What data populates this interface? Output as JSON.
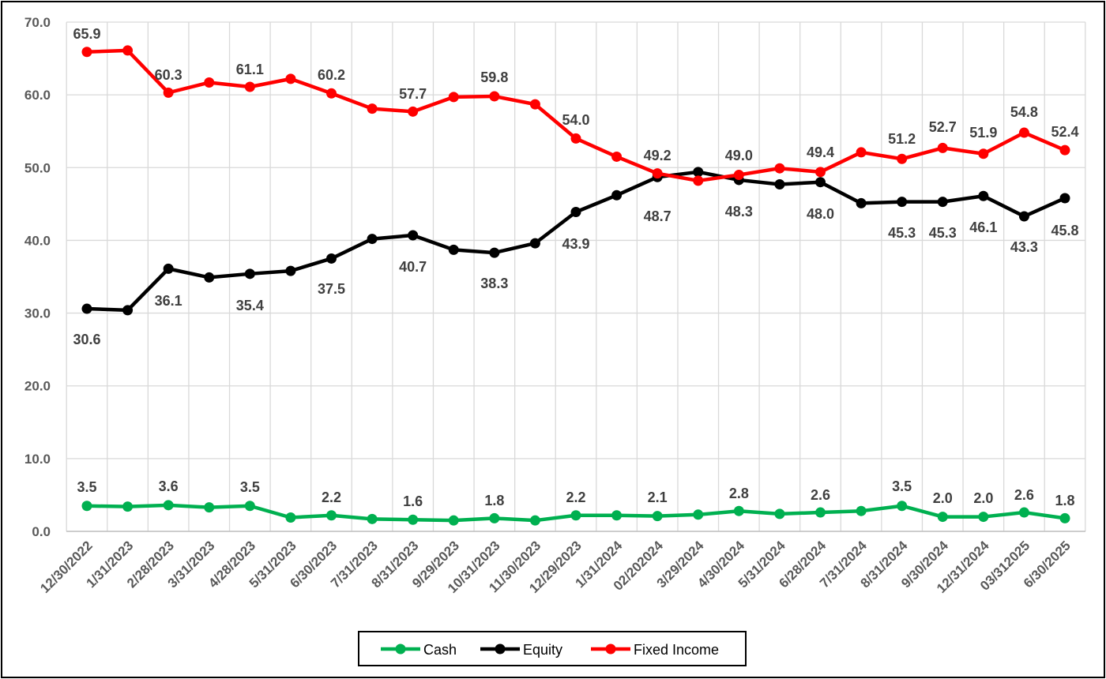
{
  "chart_data": {
    "type": "line",
    "title": "",
    "xlabel": "",
    "ylabel": "",
    "ylim": [
      0,
      70
    ],
    "yticks": [
      0,
      10,
      20,
      30,
      40,
      50,
      60,
      70
    ],
    "ytick_labels": [
      "0.0",
      "10.0",
      "20.0",
      "30.0",
      "40.0",
      "50.0",
      "60.0",
      "70.0"
    ],
    "grid": true,
    "legend_position": "bottom",
    "categories": [
      "12/30/2022",
      "1/31/2023",
      "2/28/2023",
      "3/31/2023",
      "4/28/2023",
      "5/31/2023",
      "6/30/2023",
      "7/31/2023",
      "8/31/2023",
      "9/29/2023",
      "10/31/2023",
      "11/30/2023",
      "12/29/2023",
      "1/31/2024",
      "02/202024",
      "3/29/2024",
      "4/30/2024",
      "5/31/2024",
      "6/28/2024",
      "7/31/2024",
      "8/31/2024",
      "9/30/2024",
      "12/31/2024",
      "03/312025",
      "6/30/2025"
    ],
    "series": [
      {
        "name": "Cash",
        "color": "#00b050",
        "values": [
          3.5,
          3.4,
          3.6,
          3.3,
          3.5,
          1.9,
          2.2,
          1.7,
          1.6,
          1.5,
          1.8,
          1.5,
          2.2,
          2.2,
          2.1,
          2.3,
          2.8,
          2.4,
          2.6,
          2.8,
          3.5,
          2.0,
          2.0,
          2.6,
          1.8
        ],
        "labels": [
          "3.5",
          "",
          "3.6",
          "",
          "3.5",
          "",
          "2.2",
          "",
          "1.6",
          "",
          "1.8",
          "",
          "2.2",
          "",
          "2.1",
          "",
          "2.8",
          "",
          "2.6",
          "",
          "3.5",
          "2.0",
          "2.0",
          "2.6",
          "1.8"
        ]
      },
      {
        "name": "Equity",
        "color": "#000000",
        "values": [
          30.6,
          30.4,
          36.1,
          34.9,
          35.4,
          35.8,
          37.5,
          40.2,
          40.7,
          38.7,
          38.3,
          39.6,
          43.9,
          46.2,
          48.7,
          49.4,
          48.3,
          47.7,
          48.0,
          45.1,
          45.3,
          45.3,
          46.1,
          43.3,
          45.8
        ],
        "labels": [
          "30.6",
          "",
          "36.1",
          "",
          "35.4",
          "",
          "37.5",
          "",
          "40.7",
          "",
          "38.3",
          "",
          "43.9",
          "",
          "48.7",
          "",
          "48.3",
          "",
          "48.0",
          "",
          "45.3",
          "45.3",
          "46.1",
          "43.3",
          "45.8"
        ]
      },
      {
        "name": "Fixed Income",
        "color": "#ff0000",
        "values": [
          65.9,
          66.1,
          60.3,
          61.7,
          61.1,
          62.2,
          60.2,
          58.1,
          57.7,
          59.7,
          59.8,
          58.7,
          54.0,
          51.5,
          49.2,
          48.2,
          49.0,
          49.9,
          49.4,
          52.1,
          51.2,
          52.7,
          51.9,
          54.8,
          52.4
        ],
        "labels": [
          "65.9",
          "",
          "60.3",
          "",
          "61.1",
          "",
          "60.2",
          "",
          "57.7",
          "",
          "59.8",
          "",
          "54.0",
          "",
          "49.2",
          "",
          "49.0",
          "",
          "49.4",
          "",
          "51.2",
          "52.7",
          "51.9",
          "54.8",
          "52.4"
        ]
      }
    ]
  }
}
